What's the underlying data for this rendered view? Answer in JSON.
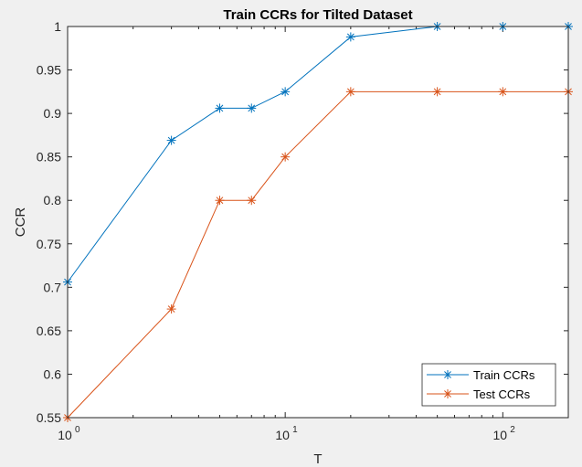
{
  "figure": {
    "background": "#f0f0f0",
    "axes_background": "#ffffff"
  },
  "chart_data": {
    "type": "line",
    "title": "Train CCRs for Tilted Dataset",
    "xlabel": "T",
    "ylabel": "CCR",
    "xscale": "log",
    "xlim": [
      1,
      200
    ],
    "ylim": [
      0.55,
      1
    ],
    "grid": false,
    "legend_location": "bottom-right",
    "x_ticks": [
      {
        "value": 1,
        "base": "10",
        "exponent": "0"
      },
      {
        "value": 10,
        "base": "10",
        "exponent": "1"
      },
      {
        "value": 100,
        "base": "10",
        "exponent": "2"
      }
    ],
    "y_ticks": [
      "0.55",
      "0.6",
      "0.65",
      "0.7",
      "0.75",
      "0.8",
      "0.85",
      "0.9",
      "0.95",
      "1"
    ],
    "x": [
      1,
      3,
      5,
      7,
      10,
      20,
      50,
      100,
      200
    ],
    "series": [
      {
        "name": "Train CCRs",
        "color": "#0072bd",
        "marker": "*",
        "values": [
          0.706,
          0.869,
          0.906,
          0.906,
          0.925,
          0.988,
          1,
          1,
          1
        ]
      },
      {
        "name": "Test CCRs",
        "color": "#d95319",
        "marker": "*",
        "values": [
          0.55,
          0.675,
          0.8,
          0.8,
          0.85,
          0.925,
          0.925,
          0.925,
          0.925
        ]
      }
    ]
  }
}
